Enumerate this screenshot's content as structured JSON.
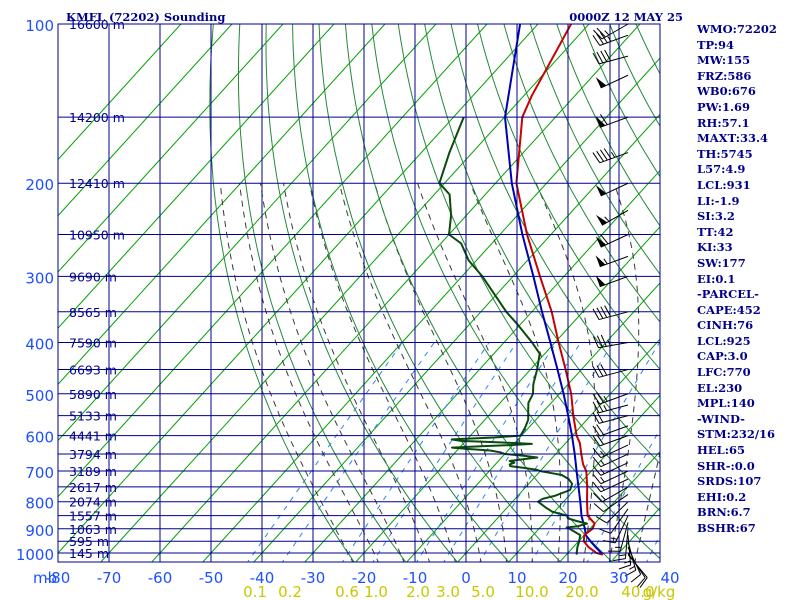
{
  "chart_data": {
    "type": "skew-t log-p sounding",
    "title": "KMFL (72202) Sounding",
    "timestamp": "0000Z 12 MAY 25",
    "pressure_axis": {
      "unit": "mb",
      "labels": [
        "100",
        "200",
        "300",
        "400",
        "500",
        "600",
        "700",
        "800",
        "900",
        "1000"
      ],
      "range": [
        1000,
        100
      ],
      "scale": "log"
    },
    "temperature_axis": {
      "unit": "°C",
      "labels": [
        "-80",
        "-70",
        "-60",
        "-50",
        "-40",
        "-30",
        "-20",
        "-10",
        "0",
        "10",
        "20",
        "30",
        "40"
      ],
      "range": [
        -80,
        40
      ]
    },
    "mixing_ratio_axis": {
      "unit": "g/kg",
      "labels": [
        "0.1",
        "0.2",
        "0.6",
        "1.0",
        "2.0",
        "3.0",
        "5.0",
        "10.0",
        "20.0",
        "40.0"
      ]
    },
    "height_labels": [
      {
        "p": 100,
        "label": "16600 m"
      },
      {
        "p": 150,
        "label": "14200 m"
      },
      {
        "p": 200,
        "label": "12410 m"
      },
      {
        "p": 250,
        "label": "10950 m"
      },
      {
        "p": 300,
        "label": "9690 m"
      },
      {
        "p": 350,
        "label": "8565 m"
      },
      {
        "p": 400,
        "label": "7590 m"
      },
      {
        "p": 450,
        "label": "6693 m"
      },
      {
        "p": 500,
        "label": "5890 m"
      },
      {
        "p": 550,
        "label": "5133 m"
      },
      {
        "p": 600,
        "label": "4441 m"
      },
      {
        "p": 650,
        "label": "3794 m"
      },
      {
        "p": 700,
        "label": "3189 m"
      },
      {
        "p": 750,
        "label": "2617 m"
      },
      {
        "p": 800,
        "label": "2074 m"
      },
      {
        "p": 850,
        "label": "1557 m"
      },
      {
        "p": 900,
        "label": "1063 m"
      },
      {
        "p": 950,
        "label": "595 m"
      },
      {
        "p": 1000,
        "label": "145 m"
      }
    ],
    "temperature_profile": [
      [
        1007,
        27.1
      ],
      [
        1000,
        25.6
      ],
      [
        975,
        23.0
      ],
      [
        950,
        21.0
      ],
      [
        925,
        20.0
      ],
      [
        900,
        20.5
      ],
      [
        880,
        20.0
      ],
      [
        850,
        17.2
      ],
      [
        800,
        14.6
      ],
      [
        750,
        12.0
      ],
      [
        700,
        9.0
      ],
      [
        680,
        7.2
      ],
      [
        650,
        5.0
      ],
      [
        620,
        2.8
      ],
      [
        600,
        0.8
      ],
      [
        550,
        -3.4
      ],
      [
        500,
        -7.7
      ],
      [
        450,
        -13.1
      ],
      [
        400,
        -19.3
      ],
      [
        350,
        -26.1
      ],
      [
        300,
        -34.7
      ],
      [
        250,
        -44.7
      ],
      [
        200,
        -55.9
      ],
      [
        150,
        -66.5
      ],
      [
        137,
        -68.4
      ],
      [
        100,
        -73.5
      ]
    ],
    "dewpoint_profile": [
      [
        1007,
        22.0
      ],
      [
        1000,
        21.7
      ],
      [
        975,
        20.8
      ],
      [
        950,
        20.1
      ],
      [
        925,
        19.2
      ],
      [
        900,
        16.0
      ],
      [
        895,
        15.2
      ],
      [
        890,
        17.2
      ],
      [
        880,
        18.5
      ],
      [
        870,
        16.0
      ],
      [
        860,
        13.8
      ],
      [
        850,
        13.2
      ],
      [
        835,
        9.5
      ],
      [
        820,
        7.5
      ],
      [
        800,
        5.0
      ],
      [
        790,
        5.4
      ],
      [
        780,
        7.2
      ],
      [
        760,
        9.2
      ],
      [
        740,
        8.5
      ],
      [
        725,
        7.0
      ],
      [
        712,
        4.9
      ],
      [
        705,
        2.0
      ],
      [
        700,
        0.0
      ],
      [
        696,
        -1.0
      ],
      [
        690,
        -4.0
      ],
      [
        685,
        -6.8
      ],
      [
        680,
        -7.2
      ],
      [
        675,
        -6.6
      ],
      [
        670,
        -7.8
      ],
      [
        665,
        -5.5
      ],
      [
        660,
        -3.0
      ],
      [
        655,
        -6.0
      ],
      [
        650,
        -10.0
      ],
      [
        645,
        -11.2
      ],
      [
        640,
        -13.5
      ],
      [
        636,
        -18.0
      ],
      [
        632,
        -21.5
      ],
      [
        628,
        -15.5
      ],
      [
        625,
        -10.2
      ],
      [
        622,
        -6.5
      ],
      [
        618,
        -13.0
      ],
      [
        614,
        -21.0
      ],
      [
        610,
        -23.0
      ],
      [
        605,
        -15.0
      ],
      [
        600,
        -10.2
      ],
      [
        580,
        -10.7
      ],
      [
        560,
        -11.5
      ],
      [
        540,
        -13.0
      ],
      [
        520,
        -14.5
      ],
      [
        500,
        -15.2
      ],
      [
        480,
        -16.8
      ],
      [
        450,
        -18.7
      ],
      [
        420,
        -21.0
      ],
      [
        400,
        -24.5
      ],
      [
        370,
        -30.5
      ],
      [
        350,
        -35.0
      ],
      [
        300,
        -46.0
      ],
      [
        280,
        -51.5
      ],
      [
        260,
        -56.0
      ],
      [
        250,
        -60.0
      ],
      [
        230,
        -63.0
      ],
      [
        210,
        -67.0
      ],
      [
        200,
        -71.0
      ],
      [
        175,
        -74.5
      ],
      [
        150,
        -78.0
      ]
    ],
    "parcel_profile": [
      [
        1007,
        27.1
      ],
      [
        975,
        24.4
      ],
      [
        950,
        22.3
      ],
      [
        925,
        20.3
      ],
      [
        900,
        19.0
      ],
      [
        850,
        16.0
      ],
      [
        800,
        13.3
      ],
      [
        750,
        10.3
      ],
      [
        700,
        7.1
      ],
      [
        650,
        3.7
      ],
      [
        600,
        -0.1
      ],
      [
        550,
        -4.4
      ],
      [
        500,
        -9.2
      ],
      [
        450,
        -14.7
      ],
      [
        400,
        -20.9
      ],
      [
        350,
        -28.0
      ],
      [
        300,
        -36.0
      ],
      [
        250,
        -45.6
      ],
      [
        200,
        -56.8
      ],
      [
        150,
        -69.9
      ],
      [
        100,
        -83.5
      ]
    ],
    "isotherm_step": 10,
    "dry_adiabats_theta": [
      250,
      260,
      270,
      280,
      290,
      300,
      310,
      320,
      330,
      340,
      350,
      360,
      370,
      380,
      390,
      400,
      410,
      420,
      430,
      440,
      450,
      460,
      470,
      480,
      490,
      500,
      520,
      540,
      560,
      580,
      600,
      620,
      640
    ],
    "moist_adiabats_t": [
      -20,
      -15,
      -10,
      -5,
      0,
      5,
      10,
      15,
      20,
      25,
      30,
      35
    ],
    "mixing_ratios": [
      0.1,
      0.2,
      0.6,
      1,
      2,
      3,
      5,
      10,
      20,
      40
    ],
    "wind_barbs": [
      {
        "p": 1007,
        "dir": 140,
        "spd": 8
      },
      {
        "p": 1000,
        "dir": 145,
        "spd": 10
      },
      {
        "p": 975,
        "dir": 155,
        "spd": 12
      },
      {
        "p": 950,
        "dir": 165,
        "spd": 13
      },
      {
        "p": 925,
        "dir": 175,
        "spd": 14
      },
      {
        "p": 900,
        "dir": 185,
        "spd": 14
      },
      {
        "p": 875,
        "dir": 195,
        "spd": 13
      },
      {
        "p": 850,
        "dir": 205,
        "spd": 13
      },
      {
        "p": 825,
        "dir": 215,
        "spd": 12
      },
      {
        "p": 800,
        "dir": 225,
        "spd": 12
      },
      {
        "p": 775,
        "dir": 235,
        "spd": 12
      },
      {
        "p": 750,
        "dir": 240,
        "spd": 13
      },
      {
        "p": 725,
        "dir": 245,
        "spd": 14
      },
      {
        "p": 700,
        "dir": 245,
        "spd": 15
      },
      {
        "p": 675,
        "dir": 245,
        "spd": 16
      },
      {
        "p": 650,
        "dir": 245,
        "spd": 17
      },
      {
        "p": 625,
        "dir": 245,
        "spd": 17
      },
      {
        "p": 600,
        "dir": 250,
        "spd": 18
      },
      {
        "p": 575,
        "dir": 250,
        "spd": 20
      },
      {
        "p": 550,
        "dir": 255,
        "spd": 22
      },
      {
        "p": 525,
        "dir": 255,
        "spd": 23
      },
      {
        "p": 500,
        "dir": 250,
        "spd": 25
      },
      {
        "p": 450,
        "dir": 255,
        "spd": 30
      },
      {
        "p": 400,
        "dir": 260,
        "spd": 35
      },
      {
        "p": 350,
        "dir": 255,
        "spd": 40
      },
      {
        "p": 300,
        "dir": 250,
        "spd": 50
      },
      {
        "p": 275,
        "dir": 250,
        "spd": 55
      },
      {
        "p": 250,
        "dir": 245,
        "spd": 60
      },
      {
        "p": 225,
        "dir": 240,
        "spd": 55
      },
      {
        "p": 200,
        "dir": 245,
        "spd": 50
      },
      {
        "p": 175,
        "dir": 250,
        "spd": 45
      },
      {
        "p": 150,
        "dir": 250,
        "spd": 60
      },
      {
        "p": 125,
        "dir": 245,
        "spd": 50
      },
      {
        "p": 115,
        "dir": 255,
        "spd": 40
      },
      {
        "p": 105,
        "dir": 250,
        "spd": 35
      },
      {
        "p": 100,
        "dir": 240,
        "spd": 25
      }
    ],
    "colors": {
      "frame": "#00008b",
      "isobar": "#00008b",
      "height_label": "#00008b",
      "axis_label": "#1e50ff",
      "temperature": "#c80000",
      "dewpoint": "#0a4a0a",
      "parcel": "#0000b4",
      "isotherm": "#00a000",
      "dry_adiabat": "#24883a",
      "moist_adiabat": "#3a3a3a",
      "mixing_ratio": "#3080ff",
      "mixing_ratio_label": "#c8c800",
      "stats_text": "#00008b"
    }
  },
  "stats": [
    "WMO:72202",
    "TP:94",
    "MW:155",
    "FRZ:586",
    "WB0:676",
    "PW:1.69",
    "RH:57.1",
    "MAXT:33.4",
    "TH:5745",
    "L57:4.9",
    "LCL:931",
    "LI:-1.9",
    "SI:3.2",
    "TT:42",
    "KI:33",
    "SW:177",
    "EI:0.1",
    "-PARCEL-",
    "CAPE:452",
    "CINH:76",
    "LCL:925",
    "CAP:3.0",
    "LFC:770",
    "EL:230",
    "MPL:140",
    "-WIND-",
    "STM:232/16",
    "HEL:65",
    "SHR-:0.0",
    "SRDS:107",
    "EHI:0.2",
    "BRN:6.7",
    "BSHR:67"
  ]
}
